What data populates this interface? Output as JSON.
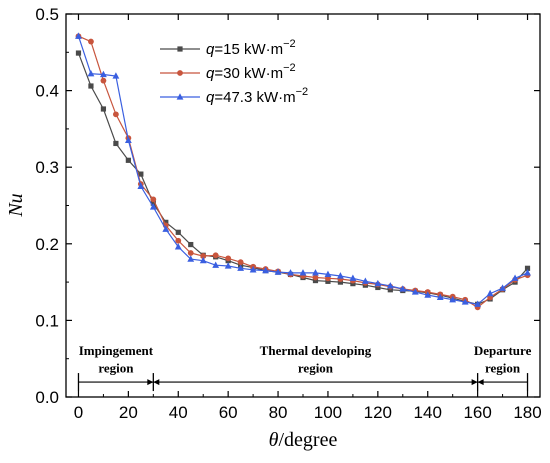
{
  "chart_data": {
    "type": "line",
    "xlabel": {
      "symbol": "θ",
      "unit": "/degree"
    },
    "ylabel": "Nu",
    "xlim": [
      -5,
      185
    ],
    "ylim": [
      0,
      0.5
    ],
    "xticks": [
      0,
      20,
      40,
      60,
      80,
      100,
      120,
      140,
      160,
      180
    ],
    "yticks": [
      0.0,
      0.1,
      0.2,
      0.3,
      0.4,
      0.5
    ],
    "xtick_labels": [
      "0",
      "20",
      "40",
      "60",
      "80",
      "100",
      "120",
      "140",
      "160",
      "180"
    ],
    "ytick_labels": [
      "0.0",
      "0.1",
      "0.2",
      "0.3",
      "0.4",
      "0.5"
    ],
    "x": [
      0,
      5,
      10,
      15,
      20,
      25,
      30,
      35,
      40,
      45,
      50,
      55,
      60,
      65,
      70,
      75,
      80,
      85,
      90,
      95,
      100,
      105,
      110,
      115,
      120,
      125,
      130,
      135,
      140,
      145,
      150,
      155,
      160,
      165,
      170,
      175,
      180
    ],
    "series": [
      {
        "name": "q=15 kW·m⁻²",
        "label_parts": {
          "symbol": "q",
          "text": "=15 kW·m",
          "sup": "−2"
        },
        "color": "#4a4a4a",
        "marker": "square",
        "values": [
          0.449,
          0.406,
          0.376,
          0.331,
          0.309,
          0.291,
          0.253,
          0.228,
          0.215,
          0.199,
          0.185,
          0.183,
          0.178,
          0.172,
          0.169,
          0.165,
          0.163,
          0.16,
          0.156,
          0.152,
          0.151,
          0.15,
          0.148,
          0.146,
          0.143,
          0.14,
          0.139,
          0.138,
          0.136,
          0.133,
          0.129,
          0.125,
          0.121,
          0.128,
          0.14,
          0.15,
          0.168
        ]
      },
      {
        "name": "q=30 kW·m⁻²",
        "label_parts": {
          "symbol": "q",
          "text": "=30 kW·m",
          "sup": "−2"
        },
        "color": "#c8553d",
        "marker": "circle",
        "values": [
          0.471,
          0.464,
          0.413,
          0.369,
          0.338,
          0.278,
          0.258,
          0.224,
          0.204,
          0.188,
          0.184,
          0.185,
          0.181,
          0.176,
          0.17,
          0.167,
          0.164,
          0.16,
          0.158,
          0.156,
          0.155,
          0.154,
          0.152,
          0.149,
          0.147,
          0.144,
          0.141,
          0.139,
          0.137,
          0.134,
          0.131,
          0.127,
          0.117,
          0.13,
          0.141,
          0.153,
          0.159
        ]
      },
      {
        "name": "q=47.3 kW·m⁻²",
        "label_parts": {
          "symbol": "q",
          "text": "=47.3 kW·m",
          "sup": "−2"
        },
        "color": "#3a5fe0",
        "marker": "triangle",
        "values": [
          0.471,
          0.422,
          0.421,
          0.419,
          0.335,
          0.275,
          0.248,
          0.219,
          0.196,
          0.18,
          0.178,
          0.172,
          0.171,
          0.168,
          0.166,
          0.165,
          0.163,
          0.162,
          0.162,
          0.162,
          0.16,
          0.158,
          0.155,
          0.151,
          0.148,
          0.145,
          0.141,
          0.137,
          0.133,
          0.13,
          0.127,
          0.124,
          0.121,
          0.135,
          0.142,
          0.155,
          0.162
        ]
      }
    ],
    "legend": {
      "placement": "top-center"
    },
    "grid": false,
    "regions": [
      {
        "label_lines": [
          "Impingement",
          "region"
        ],
        "x_start": 0,
        "x_end": 30
      },
      {
        "label_lines": [
          "Thermal developing",
          "region"
        ],
        "x_start": 30,
        "x_end": 160
      },
      {
        "label_lines": [
          "Departure",
          "region"
        ],
        "x_start": 160,
        "x_end": 180
      }
    ]
  }
}
